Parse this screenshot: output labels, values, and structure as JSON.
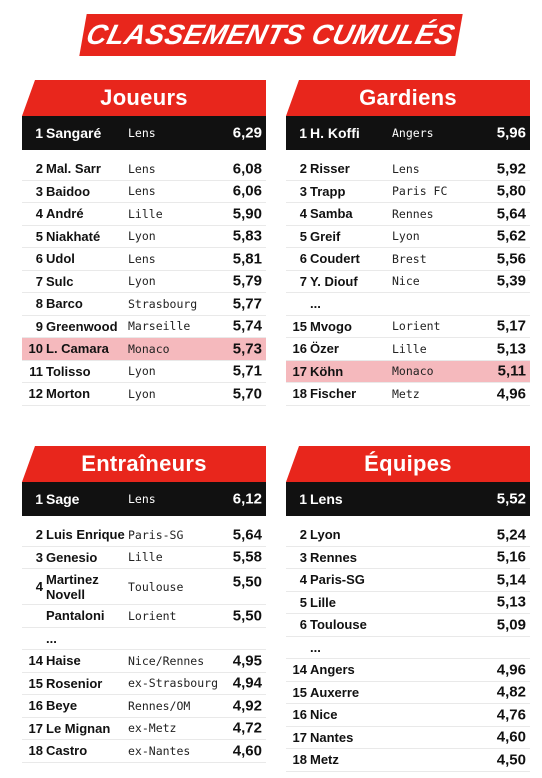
{
  "title": "CLASSEMENTS CUMULÉS",
  "joueurs": {
    "heading": "Joueurs",
    "rows": [
      {
        "rank": "1",
        "name": "Sangaré",
        "club": "Lens",
        "value": "6,29"
      },
      {
        "rank": "2",
        "name": "Mal. Sarr",
        "club": "Lens",
        "value": "6,08"
      },
      {
        "rank": "3",
        "name": "Baidoo",
        "club": "Lens",
        "value": "6,06"
      },
      {
        "rank": "4",
        "name": "André",
        "club": "Lille",
        "value": "5,90"
      },
      {
        "rank": "5",
        "name": "Niakhaté",
        "club": "Lyon",
        "value": "5,83"
      },
      {
        "rank": "6",
        "name": "Udol",
        "club": "Lens",
        "value": "5,81"
      },
      {
        "rank": "7",
        "name": "Sulc",
        "club": "Lyon",
        "value": "5,79"
      },
      {
        "rank": "8",
        "name": "Barco",
        "club": "Strasbourg",
        "value": "5,77"
      },
      {
        "rank": "9",
        "name": "Greenwood",
        "club": "Marseille",
        "value": "5,74"
      },
      {
        "rank": "10",
        "name": "L. Camara",
        "club": "Monaco",
        "value": "5,73"
      },
      {
        "rank": "11",
        "name": "Tolisso",
        "club": "Lyon",
        "value": "5,71"
      },
      {
        "rank": "12",
        "name": "Morton",
        "club": "Lyon",
        "value": "5,70"
      }
    ]
  },
  "gardiens": {
    "heading": "Gardiens",
    "rows": [
      {
        "rank": "1",
        "name": "H. Koffi",
        "club": "Angers",
        "value": "5,96"
      },
      {
        "rank": "2",
        "name": "Risser",
        "club": "Lens",
        "value": "5,92"
      },
      {
        "rank": "3",
        "name": "Trapp",
        "club": "Paris FC",
        "value": "5,80"
      },
      {
        "rank": "4",
        "name": "Samba",
        "club": "Rennes",
        "value": "5,64"
      },
      {
        "rank": "5",
        "name": "Greif",
        "club": "Lyon",
        "value": "5,62"
      },
      {
        "rank": "6",
        "name": "Coudert",
        "club": "Brest",
        "value": "5,56"
      },
      {
        "rank": "7",
        "name": "Y. Diouf",
        "club": "Nice",
        "value": "5,39"
      },
      {
        "rank": "",
        "name": "...",
        "club": "",
        "value": ""
      },
      {
        "rank": "15",
        "name": "Mvogo",
        "club": "Lorient",
        "value": "5,17"
      },
      {
        "rank": "16",
        "name": "Özer",
        "club": "Lille",
        "value": "5,13"
      },
      {
        "rank": "17",
        "name": "Köhn",
        "club": "Monaco",
        "value": "5,11"
      },
      {
        "rank": "18",
        "name": "Fischer",
        "club": "Metz",
        "value": "4,96"
      }
    ]
  },
  "entraineurs": {
    "heading": "Entraîneurs",
    "rows": [
      {
        "rank": "1",
        "name": "Sage",
        "club": "Lens",
        "value": "6,12"
      },
      {
        "rank": "2",
        "name": "Luis Enrique",
        "club": "Paris-SG",
        "value": "5,64"
      },
      {
        "rank": "3",
        "name": "Genesio",
        "club": "Lille",
        "value": "5,58"
      },
      {
        "rank": "4",
        "name_line1": "Martinez",
        "name_line2": "Novell",
        "club": "Toulouse",
        "value": "5,50"
      },
      {
        "rank": "",
        "name": "Pantaloni",
        "club": "Lorient",
        "value": "5,50"
      },
      {
        "rank": "",
        "name": "...",
        "club": "",
        "value": ""
      },
      {
        "rank": "14",
        "name": "Haise",
        "club": "Nice/Rennes",
        "value": "4,95"
      },
      {
        "rank": "15",
        "name": "Rosenior",
        "club": "ex-Strasbourg",
        "value": "4,94"
      },
      {
        "rank": "16",
        "name": "Beye",
        "club": "Rennes/OM",
        "value": "4,92"
      },
      {
        "rank": "17",
        "name": "Le Mignan",
        "club": "ex-Metz",
        "value": "4,72"
      },
      {
        "rank": "18",
        "name": "Castro",
        "club": "ex-Nantes",
        "value": "4,60"
      }
    ]
  },
  "equipes": {
    "heading": "Équipes",
    "rows": [
      {
        "rank": "1",
        "name": "Lens",
        "value": "5,52"
      },
      {
        "rank": "2",
        "name": "Lyon",
        "value": "5,24"
      },
      {
        "rank": "3",
        "name": "Rennes",
        "value": "5,16"
      },
      {
        "rank": "4",
        "name": "Paris-SG",
        "value": "5,14"
      },
      {
        "rank": "5",
        "name": "Lille",
        "value": "5,13"
      },
      {
        "rank": "6",
        "name": "Toulouse",
        "value": "5,09"
      },
      {
        "rank": "",
        "name": "...",
        "value": ""
      },
      {
        "rank": "14",
        "name": "Angers",
        "value": "4,96"
      },
      {
        "rank": "15",
        "name": "Auxerre",
        "value": "4,82"
      },
      {
        "rank": "16",
        "name": "Nice",
        "value": "4,76"
      },
      {
        "rank": "17",
        "name": "Nantes",
        "value": "4,60"
      },
      {
        "rank": "18",
        "name": "Metz",
        "value": "4,50"
      }
    ]
  },
  "colors": {
    "accent": "#e8261c",
    "highlight": "#f5b9bd",
    "leader_bg": "#111111"
  }
}
